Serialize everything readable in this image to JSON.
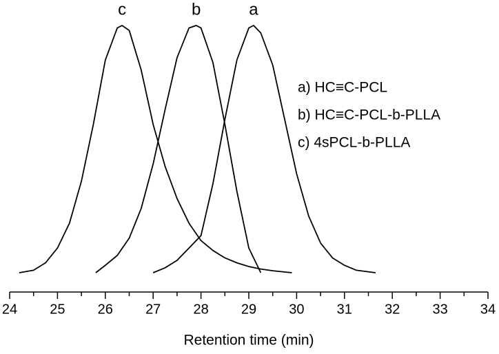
{
  "chart_data": {
    "type": "line",
    "xlabel": "Retention time (min)",
    "xlim": [
      24,
      34
    ],
    "xticks": [
      24,
      25,
      26,
      27,
      28,
      29,
      30,
      31,
      32,
      33,
      34
    ],
    "xminorticks": [
      24.5,
      25.5,
      26.5,
      27.5,
      28.5,
      29.5,
      30.5,
      31.5,
      32.5,
      33.5
    ],
    "legend": "right",
    "series": [
      {
        "name": "a) HC≡C-PCL",
        "label": "a",
        "color": "#000000",
        "x": [
          27.0,
          27.25,
          27.5,
          27.75,
          28.0,
          28.25,
          28.5,
          28.75,
          29.0,
          29.1,
          29.25,
          29.5,
          29.75,
          30.0,
          30.25,
          30.5,
          30.75,
          31.0,
          31.25,
          31.65
        ],
        "values": [
          0,
          0.02,
          0.05,
          0.1,
          0.15,
          0.36,
          0.62,
          0.86,
          0.99,
          1.0,
          0.97,
          0.84,
          0.62,
          0.4,
          0.23,
          0.12,
          0.06,
          0.03,
          0.01,
          0
        ]
      },
      {
        "name": "b) HC≡C-PCL-b-PLLA",
        "label": "b",
        "color": "#000000",
        "x": [
          25.8,
          26.0,
          26.25,
          26.5,
          26.75,
          27.0,
          27.25,
          27.5,
          27.75,
          27.9,
          28.0,
          28.25,
          28.5,
          28.75,
          29.0,
          29.25
        ],
        "values": [
          0,
          0.03,
          0.07,
          0.14,
          0.26,
          0.44,
          0.66,
          0.87,
          0.99,
          1.0,
          0.99,
          0.85,
          0.6,
          0.33,
          0.1,
          0
        ]
      },
      {
        "name": "c) 4sPCL-b-PLLA",
        "label": "c",
        "color": "#000000",
        "x": [
          24.2,
          24.5,
          24.75,
          25.0,
          25.25,
          25.5,
          25.75,
          26.0,
          26.25,
          26.35,
          26.5,
          26.75,
          27.0,
          27.25,
          27.5,
          27.75,
          28.0,
          28.25,
          28.5,
          28.75,
          29.0,
          29.25,
          29.5,
          29.9
        ],
        "values": [
          0,
          0.01,
          0.04,
          0.1,
          0.2,
          0.37,
          0.6,
          0.86,
          0.99,
          1.0,
          0.98,
          0.82,
          0.6,
          0.43,
          0.3,
          0.2,
          0.13,
          0.09,
          0.06,
          0.04,
          0.025,
          0.015,
          0.008,
          0
        ]
      }
    ]
  }
}
